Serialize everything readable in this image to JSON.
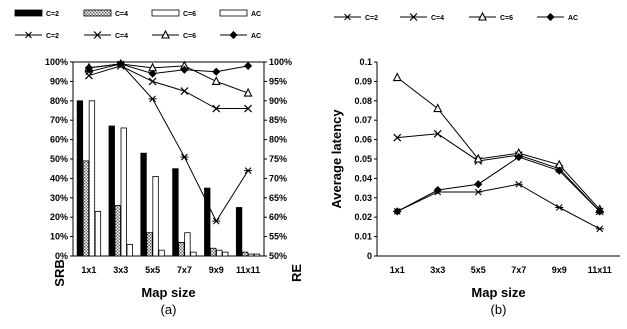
{
  "chart_data": [
    {
      "panel": "(a)",
      "type": "bar",
      "secondary_type": "line",
      "xlabel": "Map size",
      "ylabel": "SRB",
      "y2label": "RE",
      "categories": [
        "1x1",
        "3x3",
        "5x5",
        "7x7",
        "9x9",
        "11x11"
      ],
      "ylim": [
        0,
        100
      ],
      "yticks": [
        "0%",
        "10%",
        "20%",
        "30%",
        "40%",
        "50%",
        "60%",
        "70%",
        "80%",
        "90%",
        "100%"
      ],
      "y2lim": [
        50,
        100
      ],
      "y2ticks": [
        "50%",
        "55%",
        "60%",
        "65%",
        "70%",
        "75%",
        "80%",
        "85%",
        "90%",
        "95%",
        "100%"
      ],
      "grid": false,
      "legend_placement": "top",
      "series": [
        {
          "name": "C=2",
          "kind": "bar",
          "style": "solid-black",
          "values": [
            80,
            67,
            53,
            45,
            35,
            25
          ]
        },
        {
          "name": "C=4",
          "kind": "bar",
          "style": "hatched",
          "values": [
            49,
            26,
            12,
            7,
            4,
            2
          ]
        },
        {
          "name": "C=6",
          "kind": "bar",
          "style": "white",
          "values": [
            80,
            66,
            41,
            12,
            3,
            1
          ]
        },
        {
          "name": "AC",
          "kind": "bar",
          "style": "white",
          "values": [
            23,
            6,
            3,
            2,
            2,
            1
          ]
        }
      ],
      "line_series": [
        {
          "name": "C=2",
          "marker": "x-bar",
          "values": [
            97.5,
            99.5,
            90.5,
            75.5,
            59,
            72
          ]
        },
        {
          "name": "C=4",
          "marker": "star",
          "values": [
            96.5,
            99,
            95,
            92.5,
            88,
            88
          ]
        },
        {
          "name": "C=6",
          "marker": "triangle",
          "values": [
            98.5,
            99.5,
            98.5,
            99,
            95,
            92
          ]
        },
        {
          "name": "AC",
          "marker": "diamond",
          "values": [
            98.5,
            99.5,
            97,
            98,
            97.5,
            99
          ]
        }
      ]
    },
    {
      "panel": "(b)",
      "type": "line",
      "xlabel": "Map size",
      "ylabel": "Average latency",
      "categories": [
        "1x1",
        "3x3",
        "5x5",
        "7x7",
        "9x9",
        "11x11"
      ],
      "ylim": [
        0,
        0.1
      ],
      "yticks": [
        "0",
        "0.01",
        "0.02",
        "0.03",
        "0.04",
        "0.05",
        "0.06",
        "0.07",
        "0.08",
        "0.09",
        "0.1"
      ],
      "grid": false,
      "legend_placement": "top",
      "series": [
        {
          "name": "C=2",
          "marker": "x-bar",
          "values": [
            0.023,
            0.033,
            0.033,
            0.037,
            0.025,
            0.014
          ]
        },
        {
          "name": "C=4",
          "marker": "star",
          "values": [
            0.061,
            0.063,
            0.049,
            0.052,
            0.045,
            0.023
          ]
        },
        {
          "name": "C=6",
          "marker": "triangle",
          "values": [
            0.092,
            0.076,
            0.05,
            0.053,
            0.047,
            0.024
          ]
        },
        {
          "name": "AC",
          "marker": "diamond",
          "values": [
            0.023,
            0.034,
            0.037,
            0.051,
            0.044,
            0.023
          ]
        }
      ]
    }
  ]
}
